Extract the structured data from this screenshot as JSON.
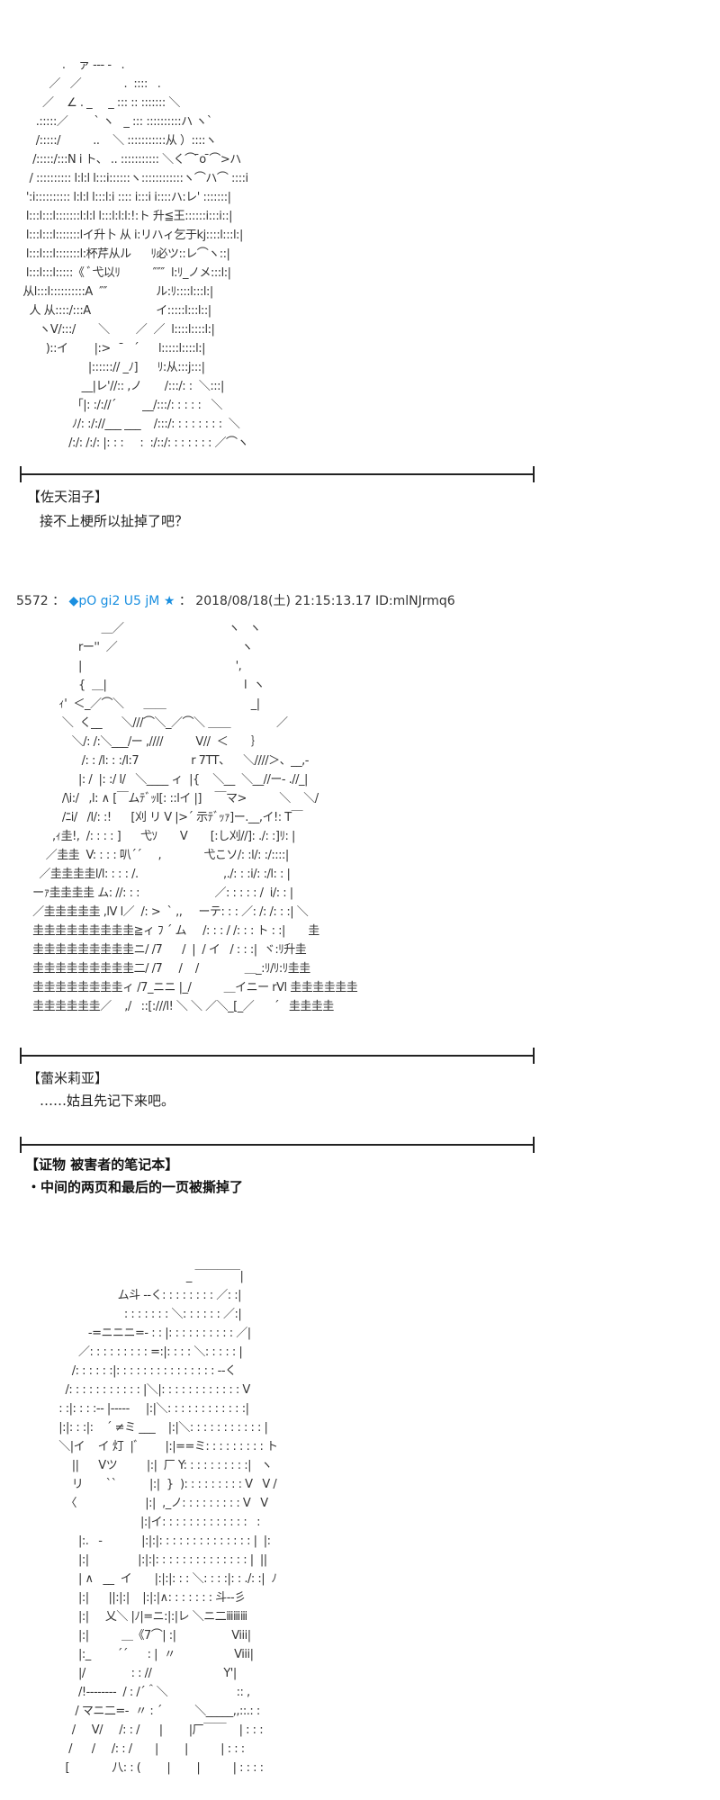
{
  "art_1": [
    "              .    ァ ‐‐‐ ‐   .",
    "          ／   ／             .  ::::   .",
    "        ／    ∠ . _     _ ::: :: ::::::: ＼",
    "      .:::::／        ` ヽ   _ ::: ::::::::::ハ ヽ`",
    "      /:::::/          ..    ＼ :::::::::::从 ）::::ヽ",
    "     /:::::/:::N i ト、 .. ::::::::::: ＼く⌒ ̄o ̄⌒>ハ",
    "    / :::::::::: l:l:l l:::i::::::ヽ::::::::::::ヽ⌒ハ⌒ ::::i",
    "   ':i:::::::::: l:l:l l:::l:i :::: i:::i i::::ハ:レ' :::::::|",
    "   l:::l:::l:::::::l:l:l l:::l:l:l:!:ト 升≦王::::::i:::i::|",
    "   l:::l:::l:::::::lイ升卜 从 i:リハィ乞于kj::::l:::l:|",
    "   l:::l:::l:::::::l:杯芹从ル      ﾘ必ツ::レ⌒ヽ::|",
    "   l:::l:::l:::::《 ﾞ弋以ﾘ          ″″″  l:ﾘ_ノメ:::l:|",
    "  从l:::l::::::::::A  ″″               ル:ﾘ::::l:::l:|",
    "    人 从::::/:::A                    イ:::::l:::l::|",
    "       ヽV/:::/       ＼        ／  ／  l::::l::::l:|",
    "         )::イ        |:>    ̄   ´      l:::::l::::l:|",
    "                      |::::::// _ﾉ]      ﾘ:从:::j:::|",
    "                    __|レ'//:: ,ノ       /:::/: :  ＼:::|",
    "                 「|: :/://´        __/:::/: : : : :   ＼",
    "                 ﾉ/: :/://___ ___    /:::/: : : : : : : :  ＼",
    "                /:/: /:/: |: : :     :  :/::/: : : : : : : ／⌒ヽ"
  ],
  "dialogue_1": {
    "speaker": "【佐天泪子】",
    "line": "接不上梗所以扯掉了吧？"
  },
  "post": {
    "number": "5572",
    "sep": "：",
    "trip": "◆pO gi2 U5 jM ★",
    "datetime": "2018/08/18(土) 21:15:13.17",
    "id": "ID:mlNJrmq6"
  },
  "art_2": [
    "                          ＿／                                ヽ   ヽ",
    "                   rー''  ／                                      ヽ",
    "                   |                                               ',",
    "                   {  ＿|                                          l  ヽ",
    "             ｨ'  ＜_／⌒＼      ＿＿                          _|",
    "              ＼  く__      ＼///⌒＼_／⌒＼ ＿＿              ／",
    "                 ＼/: /:＼___/ー ,////          V//  ＜       ｝",
    "                    /: : /l: : :/l:7                r 7TT、    ＼////＞、__,-",
    "                   |: /  |: :/ l/   ＼____ ィ  |{    ＼__  ＼__//ー- .//_|",
    "              /\\i:/   ,l: ∧ [￣ムﾃﾞｯl[: ::lイ |]    ￣マ>          ＼    ＼/",
    "              /ﾆi/   /l/: :!      [刈 リ V |>´ 示ﾃﾞｯｧ]ー.__,イ!: T￣",
    "           ,ｨ圭!,  /: : : : ]      弋ｿ       V       [:し刈//]: ./: :]ﾘ: |",
    "         ／圭圭  V: : : : 叭´´     ,             弋こソ/: :l/: :/::::|",
    "       ／圭圭圭圭l/l: : : : /.                          ,./: : :i/: :/l: : |",
    "     ーｧ圭圭圭圭 ム: //: : :                       ／: : : : : /  i/: : |",
    "     ／圭圭圭圭圭 ,lV l／  /: >  ` ,,     ーテ: : : ／: /: /: : :| ＼",
    "     圭圭圭圭圭圭圭圭圭≧ィ ﾌ ´ ム     /: : : / /: : : ト : :|       圭",
    "     圭圭圭圭圭圭圭圭圭ニ/ /7      /  |  / イ   / : : :|  ヾ:ﾘ升圭",
    "     圭圭圭圭圭圭圭圭圭二/ /7     /    /              ＿_:ﾘ/ﾘ:ﾘ圭圭",
    "     圭圭圭圭圭圭圭圭ィ /7_ニニ |_/          ＿イニー rVl 圭圭圭圭圭圭",
    "     圭圭圭圭圭圭／    ,/   ::[:///l! ＼ ＼ ／＼_[_／      ´   圭圭圭圭"
  ],
  "dialogue_2": {
    "speaker": "【蕾米莉亚】",
    "line": "……姑且先记下来吧。"
  },
  "evidence": {
    "title": "【证物  被害者的笔记本】",
    "item": "・中间的两页和最后的一页被撕掉了"
  },
  "art_3": [
    "                                                    _ ￣￣￣￣|",
    "                               ム斗 ‐‐く: : : : : : : : ／: :|",
    "                                 : : : : : : : ＼: : : : : : ／:|",
    "                      -=ニニニ=- : : |: : : : : : : : : : ／|",
    "                   ／: : : : : : : : : =:|: : : : ＼: : : : : |",
    "                 /: : : : : :|: : : : : : : : : : : : : : : ‐‐く",
    "               /: : : : : : : : : : : |＼|: : : : : : : : : : : : V",
    "             : :|: : : :‐‐ |‐‐‐‐‐     |:|＼: : : : : : : : : : : :|",
    "             |:|: : :|:    ´ ≠ミ ___    |:|＼: : : : : : : : : : : |",
    "             ＼|イ    イ 灯  |ﾞ        |:|==ミ: : : : : : : : : ト",
    "                 ||      Vツ         |:|  厂 Y: : : : : : : : : :|   ヽ",
    "                 リ       ``          |:|  }  ): : : : : : : : : V   V /",
    "               〈                     |:|  ,_ノ: : : : : : : : : V   V",
    "                                      |:|イ: : : : : : : : : : : : :   :",
    "                   |:.   -            |:|:|: : : : : : : : : : : : : : |  |:",
    "                   |:|               |:|:|: : : : : : : : : : : : : : |  ||",
    "                   | ∧   __  イ       |:|:|: : : ＼: : : :|: : ./: :|  ﾉ",
    "                   |:|      ||:|:|    |:|:|∧: : : : : : : 斗‐‐彡",
    "                   |:|     乂＼ |ﾉ|=ニ:|:|レ ＼ニ二ⅲⅲⅲ",
    "                   |:|          ＿《7⌒| :|                 Viii|",
    "                   |:_        ´´      : |  〃                  Viii|",
    "                   |/              : : //                      Y'|",
    "                   /!‐‐‐‐‐‐‐‐  / : /´＾＼                     :: ,",
    "                  / マニ二=-  〃 : ´          ＼_____,,::.: :",
    "                 /     V/     /: : /      |        |厂￣￣    | : : :",
    "                /      /     /: : /       |        |          | : : :",
    "               [             八: : (        |        |          | : : : :"
  ]
}
